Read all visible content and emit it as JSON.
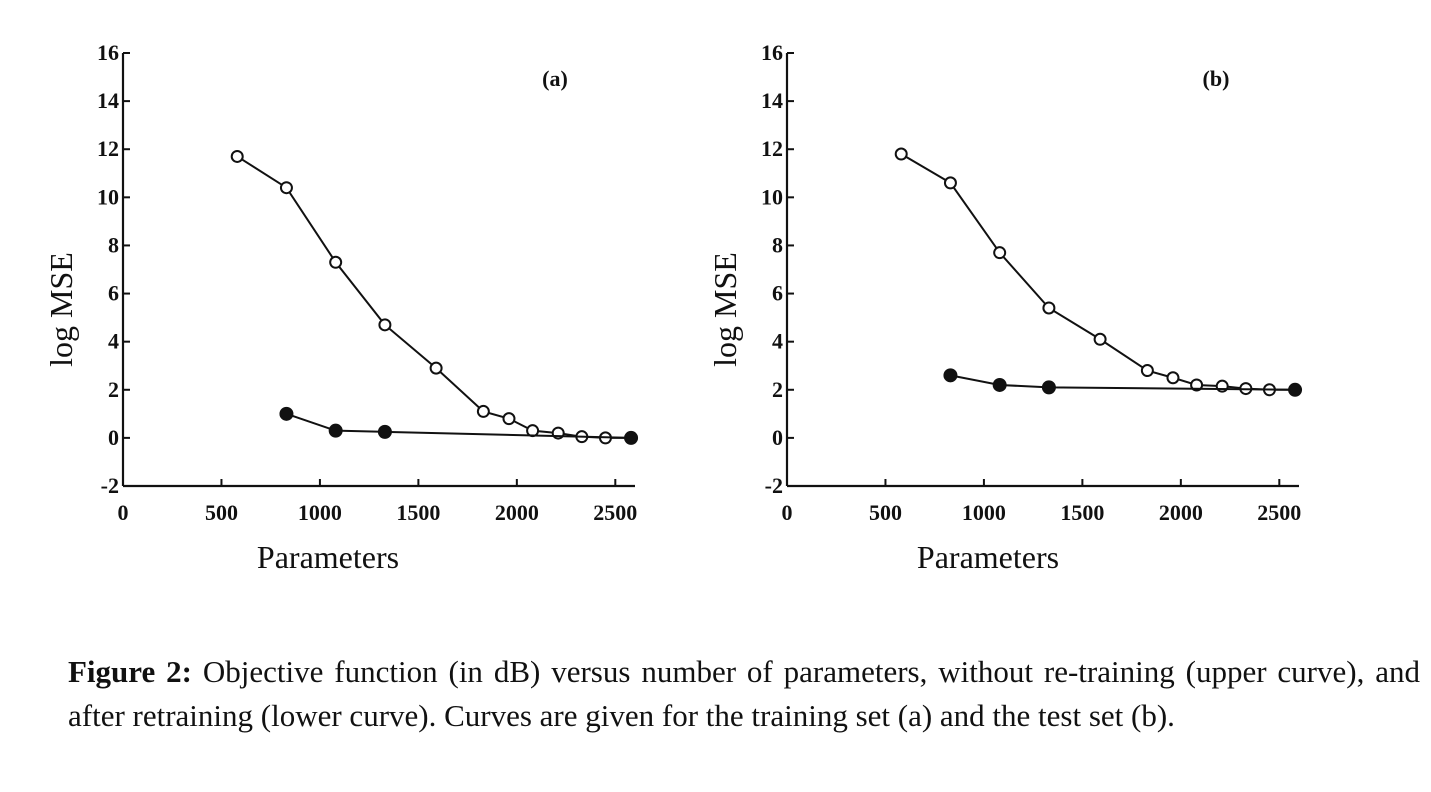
{
  "chart_data": [
    {
      "type": "line",
      "panel_label": "(a)",
      "xlabel": "Parameters",
      "ylabel": "log MSE",
      "xlim": [
        0,
        2600
      ],
      "ylim": [
        -2,
        16
      ],
      "xticks": [
        0,
        500,
        1000,
        1500,
        2000,
        2500
      ],
      "yticks": [
        -2,
        0,
        2,
        4,
        6,
        8,
        10,
        12,
        14,
        16
      ],
      "grid": false,
      "series": [
        {
          "marker": "open-circle",
          "x": [
            580,
            830,
            1080,
            1330,
            1590,
            1830,
            1960,
            2080,
            2210,
            2330,
            2450,
            2580
          ],
          "y": [
            11.7,
            10.4,
            7.3,
            4.7,
            2.9,
            1.1,
            0.8,
            0.3,
            0.2,
            0.05,
            0.0,
            0.0
          ]
        },
        {
          "marker": "filled-circle",
          "x": [
            830,
            1080,
            1330,
            2580
          ],
          "y": [
            1.0,
            0.3,
            0.25,
            0.0
          ]
        }
      ]
    },
    {
      "type": "line",
      "panel_label": "(b)",
      "xlabel": "Parameters",
      "ylabel": "log MSE",
      "xlim": [
        0,
        2600
      ],
      "ylim": [
        -2,
        16
      ],
      "xticks": [
        0,
        500,
        1000,
        1500,
        2000,
        2500
      ],
      "yticks": [
        -2,
        0,
        2,
        4,
        6,
        8,
        10,
        12,
        14,
        16
      ],
      "grid": false,
      "series": [
        {
          "marker": "open-circle",
          "x": [
            580,
            830,
            1080,
            1330,
            1590,
            1830,
            1960,
            2080,
            2210,
            2330,
            2450,
            2580
          ],
          "y": [
            11.8,
            10.6,
            7.7,
            5.4,
            4.1,
            2.8,
            2.5,
            2.2,
            2.15,
            2.05,
            2.0,
            2.0
          ]
        },
        {
          "marker": "filled-circle",
          "x": [
            830,
            1080,
            1330,
            2580
          ],
          "y": [
            2.6,
            2.2,
            2.1,
            2.0
          ]
        }
      ]
    }
  ],
  "caption": {
    "label": "Figure 2:",
    "text": " Objective function (in dB) versus number of parameters, without re-training (upper curve), and after retraining (lower curve). Curves are given for the training set (a) and the test set (b)."
  },
  "colors": {
    "ink": "#111111",
    "background": "#ffffff"
  }
}
